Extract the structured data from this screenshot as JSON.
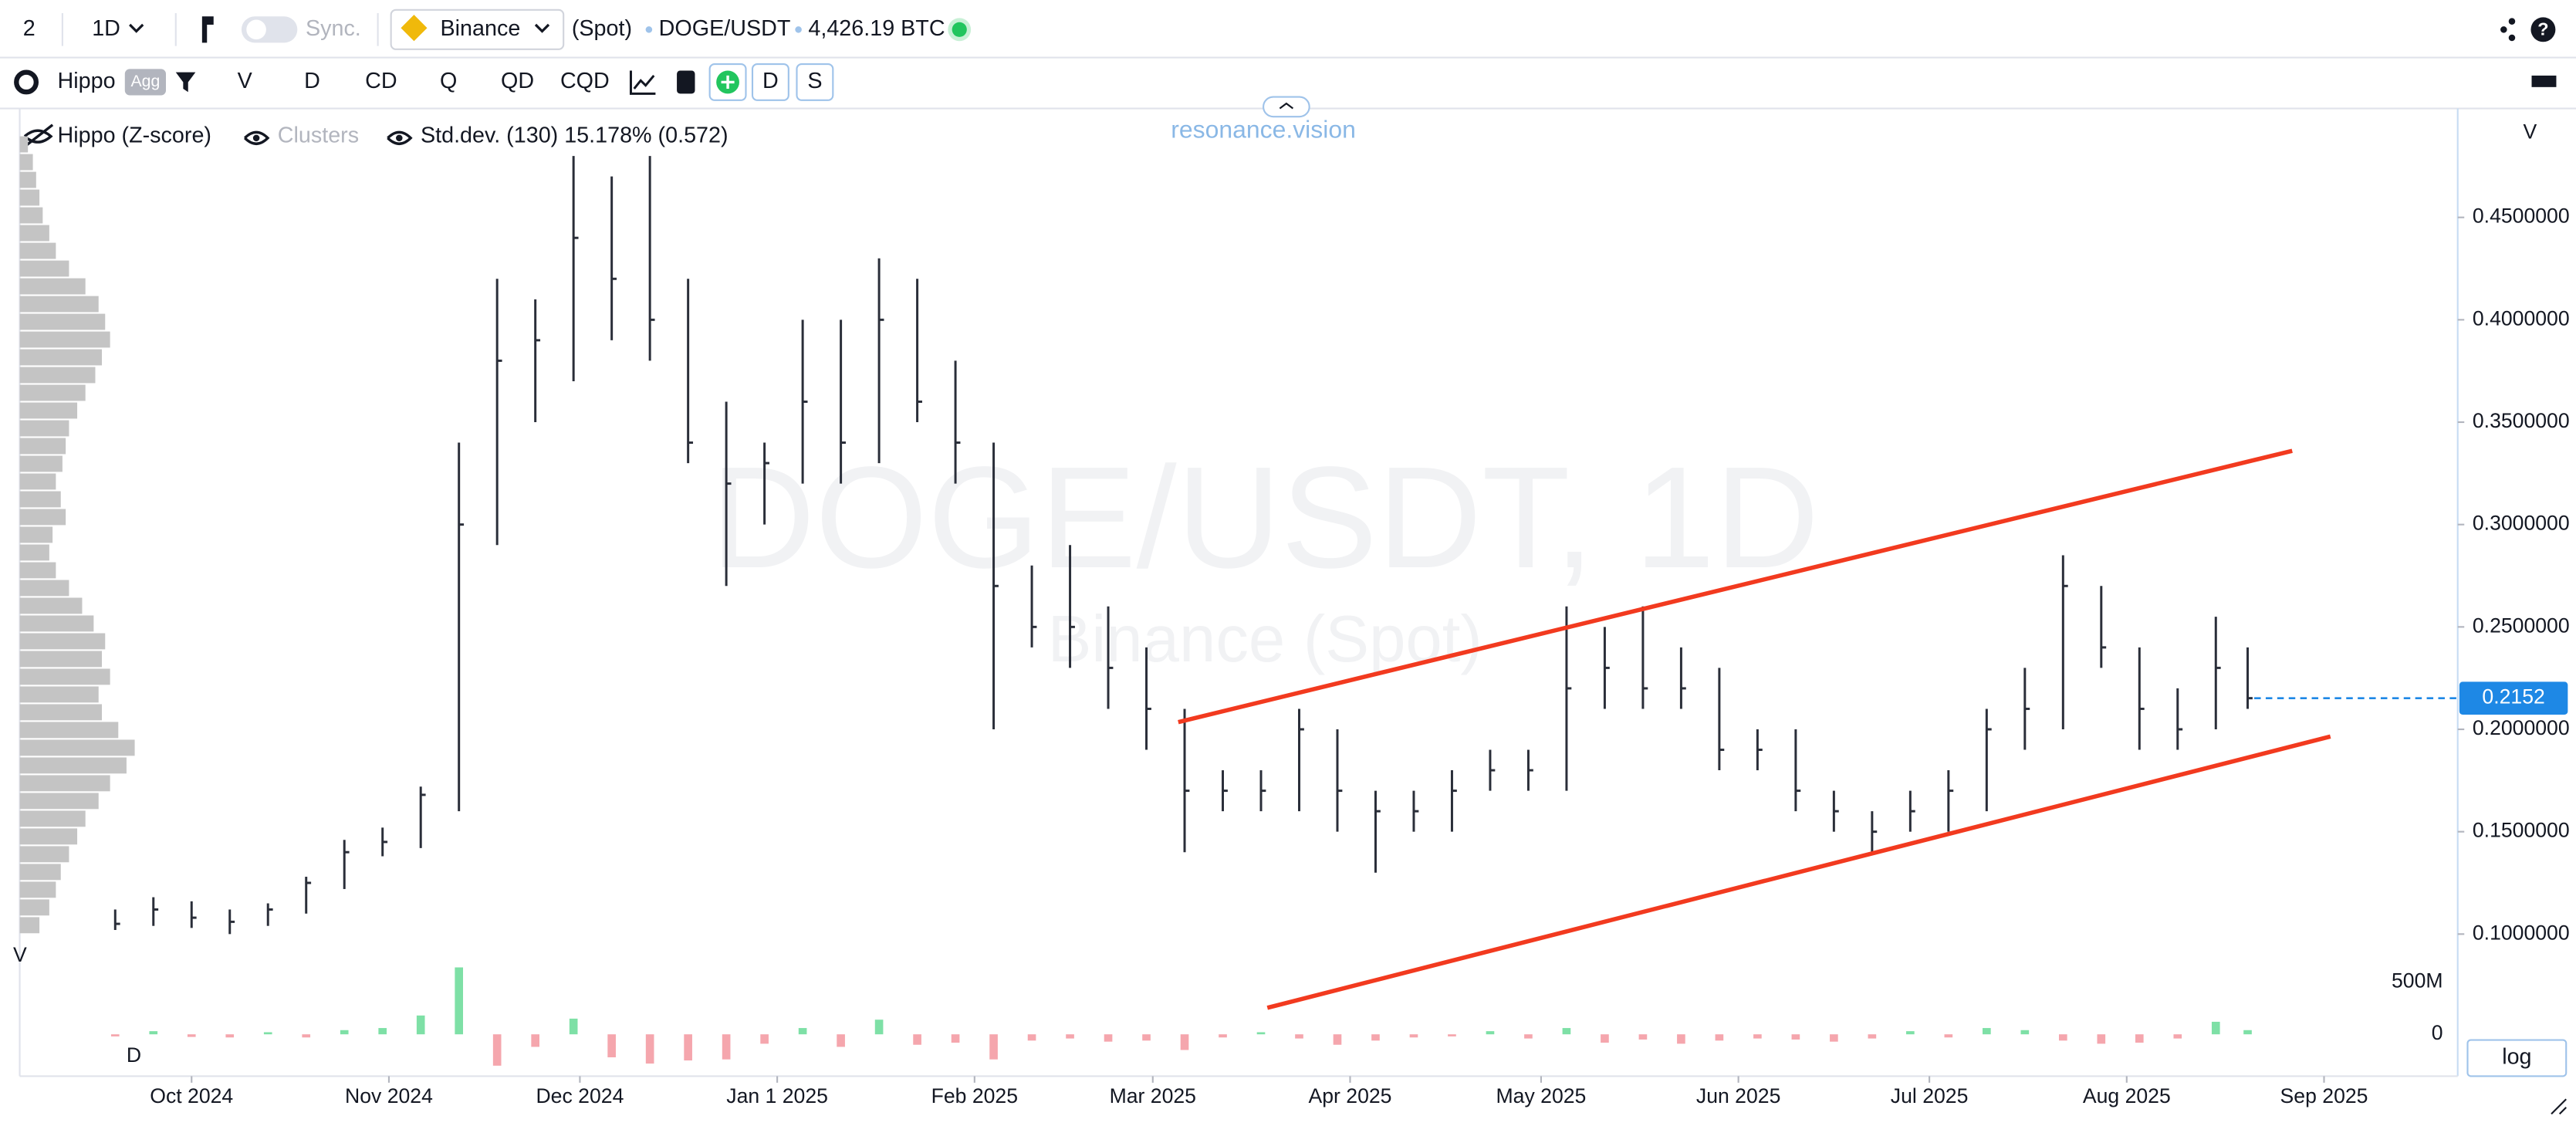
{
  "header": {
    "layout": "2",
    "interval": "1D",
    "sync": "Sync.",
    "exchange": "Binance",
    "market": "(Spot)",
    "symbol": "DOGE/USDT",
    "volume": "4,426.19 BTC"
  },
  "toolbar": {
    "indicator": "Hippo",
    "agg": "Agg",
    "buttons": [
      "V",
      "D",
      "CD",
      "Q",
      "QD",
      "CQD"
    ],
    "toggles": [
      "D",
      "S"
    ]
  },
  "legend": {
    "hippo": "Hippo (Z-score)",
    "clusters": "Clusters",
    "stddev": "Std.dev. (130) 15.178% (0.572)"
  },
  "brand": "resonance.vision",
  "watermark": {
    "title": "DOGE/USDT, 1D",
    "subtitle": "Binance (Spot)"
  },
  "scale_button": "log",
  "chart_data": {
    "type": "ohlc",
    "color": "#2a2e39",
    "x": [
      18,
      24,
      30,
      36,
      42,
      48,
      54,
      60,
      66,
      72,
      78,
      84,
      90,
      96,
      102,
      108,
      114,
      120,
      126,
      132,
      138,
      144,
      150,
      156,
      162,
      168,
      174,
      180,
      186,
      192,
      198,
      204,
      210,
      216,
      222,
      228,
      234,
      240,
      246,
      252,
      258,
      264,
      270,
      276,
      282,
      288,
      294,
      300,
      306,
      312,
      318,
      324,
      330,
      336,
      342,
      348,
      353
    ],
    "high": [
      0.112,
      0.118,
      0.116,
      0.112,
      0.115,
      0.128,
      0.146,
      0.152,
      0.172,
      0.34,
      0.42,
      0.41,
      0.48,
      0.47,
      0.48,
      0.42,
      0.36,
      0.34,
      0.4,
      0.4,
      0.43,
      0.42,
      0.38,
      0.34,
      0.28,
      0.29,
      0.26,
      0.24,
      0.21,
      0.18,
      0.18,
      0.21,
      0.2,
      0.17,
      0.17,
      0.18,
      0.19,
      0.19,
      0.26,
      0.25,
      0.26,
      0.24,
      0.23,
      0.2,
      0.2,
      0.17,
      0.16,
      0.17,
      0.18,
      0.21,
      0.23,
      0.285,
      0.27,
      0.24,
      0.22,
      0.255,
      0.24
    ],
    "low": [
      0.102,
      0.104,
      0.103,
      0.1,
      0.104,
      0.11,
      0.122,
      0.138,
      0.142,
      0.16,
      0.29,
      0.35,
      0.37,
      0.39,
      0.38,
      0.33,
      0.27,
      0.3,
      0.32,
      0.32,
      0.33,
      0.35,
      0.32,
      0.2,
      0.24,
      0.23,
      0.21,
      0.19,
      0.14,
      0.16,
      0.16,
      0.16,
      0.15,
      0.13,
      0.15,
      0.15,
      0.17,
      0.17,
      0.17,
      0.21,
      0.21,
      0.21,
      0.18,
      0.18,
      0.16,
      0.15,
      0.14,
      0.15,
      0.15,
      0.16,
      0.19,
      0.2,
      0.23,
      0.19,
      0.19,
      0.2,
      0.21
    ],
    "close": [
      0.105,
      0.112,
      0.108,
      0.106,
      0.112,
      0.125,
      0.14,
      0.145,
      0.168,
      0.3,
      0.38,
      0.39,
      0.44,
      0.42,
      0.4,
      0.34,
      0.32,
      0.33,
      0.36,
      0.34,
      0.4,
      0.36,
      0.34,
      0.27,
      0.25,
      0.25,
      0.23,
      0.21,
      0.17,
      0.17,
      0.17,
      0.2,
      0.17,
      0.16,
      0.16,
      0.17,
      0.18,
      0.18,
      0.22,
      0.23,
      0.22,
      0.22,
      0.19,
      0.19,
      0.17,
      0.16,
      0.15,
      0.16,
      0.17,
      0.2,
      0.21,
      0.27,
      0.24,
      0.21,
      0.2,
      0.23,
      0.2152
    ],
    "xlim": [
      3,
      386
    ],
    "xticks": [
      {
        "value": 30,
        "label": "Oct 2024"
      },
      {
        "value": 61,
        "label": "Nov 2024"
      },
      {
        "value": 91,
        "label": "Dec 2024"
      },
      {
        "value": 122,
        "label": "Jan 1 2025"
      },
      {
        "value": 153,
        "label": "Feb 2025"
      },
      {
        "value": 181,
        "label": "Mar 2025"
      },
      {
        "value": 212,
        "label": "Apr 2025"
      },
      {
        "value": 242,
        "label": "May 2025"
      },
      {
        "value": 273,
        "label": "Jun 2025"
      },
      {
        "value": 303,
        "label": "Jul 2025"
      },
      {
        "value": 334,
        "label": "Aug 2025"
      },
      {
        "value": 365,
        "label": "Sep 2025"
      }
    ],
    "ylim": [
      0.09,
      0.5
    ],
    "yticks": [
      {
        "value": 0.1,
        "label": "0.1000000"
      },
      {
        "value": 0.15,
        "label": "0.1500000"
      },
      {
        "value": 0.2,
        "label": "0.2000000"
      },
      {
        "value": 0.25,
        "label": "0.2500000"
      },
      {
        "value": 0.3,
        "label": "0.3000000"
      },
      {
        "value": 0.35,
        "label": "0.3500000"
      },
      {
        "value": 0.4,
        "label": "0.4000000"
      },
      {
        "value": 0.45,
        "label": "0.4500000"
      }
    ],
    "y_axis_label": "V",
    "last_price": {
      "value": 0.2152,
      "label": "0.2152",
      "color": "#1e88e5"
    },
    "line_color": "#f23a1f",
    "trend_lines": [
      {
        "x": [
          185,
          360
        ],
        "y": [
          0.2035,
          0.336
        ]
      },
      {
        "x": [
          199,
          366
        ],
        "y": [
          0.064,
          0.1965
        ]
      }
    ],
    "volume": {
      "pane_label": "D",
      "up_color": "#7ee0a6",
      "down_color": "#f5a6ad",
      "ylim": [
        -400000000,
        700000000
      ],
      "yticks": [
        0,
        {
          "value": 500000000,
          "label": "500M"
        }
      ],
      "values": [
        -20000000,
        30000000,
        -25000000,
        -30000000,
        20000000,
        -30000000,
        40000000,
        60000000,
        180000000,
        640000000,
        -300000000,
        -120000000,
        150000000,
        -220000000,
        -280000000,
        -250000000,
        -240000000,
        -90000000,
        60000000,
        -120000000,
        140000000,
        -100000000,
        -80000000,
        -240000000,
        -60000000,
        -40000000,
        -70000000,
        -60000000,
        -150000000,
        -30000000,
        20000000,
        -40000000,
        -100000000,
        -60000000,
        -30000000,
        -20000000,
        30000000,
        -40000000,
        60000000,
        -80000000,
        -50000000,
        -90000000,
        -60000000,
        -40000000,
        -50000000,
        -70000000,
        -40000000,
        30000000,
        -30000000,
        60000000,
        40000000,
        -60000000,
        -90000000,
        -80000000,
        -40000000,
        120000000,
        40000000
      ]
    },
    "profile": {
      "label": "V",
      "color": "#c4c4c4",
      "range": [
        0.49,
        0.1
      ],
      "values": [
        5,
        8,
        10,
        12,
        14,
        18,
        22,
        30,
        40,
        48,
        52,
        55,
        50,
        46,
        40,
        35,
        30,
        28,
        26,
        22,
        25,
        28,
        20,
        18,
        22,
        30,
        38,
        45,
        52,
        50,
        55,
        48,
        50,
        60,
        70,
        65,
        55,
        48,
        40,
        35,
        30,
        25,
        22,
        18,
        12
      ]
    }
  }
}
